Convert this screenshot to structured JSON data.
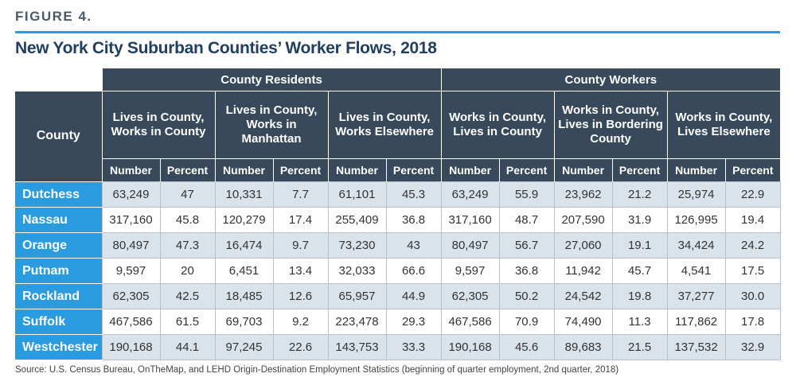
{
  "figure_label": "FIGURE 4.",
  "title": "New York City Suburban Counties’ Worker Flows, 2018",
  "table": {
    "group_headers": [
      "County Residents",
      "County Workers"
    ],
    "county_header": "County",
    "subgroups": [
      "Lives in County, Works in County",
      "Lives in County, Works in Manhattan",
      "Lives in County, Works Elsewhere",
      "Works in County, Lives in County",
      "Works in County, Lives in Bordering County",
      "Works in County, Lives Elsewhere"
    ],
    "col_labels": [
      "Number",
      "Percent"
    ],
    "rows": [
      {
        "county": "Dutchess",
        "values": [
          "63,249",
          "47",
          "10,331",
          "7.7",
          "61,101",
          "45.3",
          "63,249",
          "55.9",
          "23,962",
          "21.2",
          "25,974",
          "22.9"
        ]
      },
      {
        "county": "Nassau",
        "values": [
          "317,160",
          "45.8",
          "120,279",
          "17.4",
          "255,409",
          "36.8",
          "317,160",
          "48.7",
          "207,590",
          "31.9",
          "126,995",
          "19.4"
        ]
      },
      {
        "county": "Orange",
        "values": [
          "80,497",
          "47.3",
          "16,474",
          "9.7",
          "73,230",
          "43",
          "80,497",
          "56.7",
          "27,060",
          "19.1",
          "34,424",
          "24.2"
        ]
      },
      {
        "county": "Putnam",
        "values": [
          "9,597",
          "20",
          "6,451",
          "13.4",
          "32,033",
          "66.6",
          "9,597",
          "36.8",
          "11,942",
          "45.7",
          "4,541",
          "17.5"
        ]
      },
      {
        "county": "Rockland",
        "values": [
          "62,305",
          "42.5",
          "18,485",
          "12.6",
          "65,957",
          "44.9",
          "62,305",
          "50.2",
          "24,542",
          "19.8",
          "37,277",
          "30.0"
        ]
      },
      {
        "county": "Suffolk",
        "values": [
          "467,586",
          "61.5",
          "69,703",
          "9.2",
          "223,478",
          "29.3",
          "467,586",
          "70.9",
          "74,490",
          "11.3",
          "117,862",
          "17.8"
        ]
      },
      {
        "county": "Westchester",
        "values": [
          "190,168",
          "44.1",
          "97,245",
          "22.6",
          "143,753",
          "33.3",
          "190,168",
          "45.6",
          "89,683",
          "21.5",
          "137,532",
          "32.9"
        ]
      }
    ]
  },
  "source": "Source: U.S. Census Bureau, OnTheMap, and LEHD Origin-Destination Employment Statistics (beginning of quarter employment, 2nd quarter, 2018)",
  "colors": {
    "header_bg": "#37495a",
    "accent_blue": "#2b9be0",
    "title_navy": "#22405e",
    "row_alt": "#dbe3ea"
  }
}
